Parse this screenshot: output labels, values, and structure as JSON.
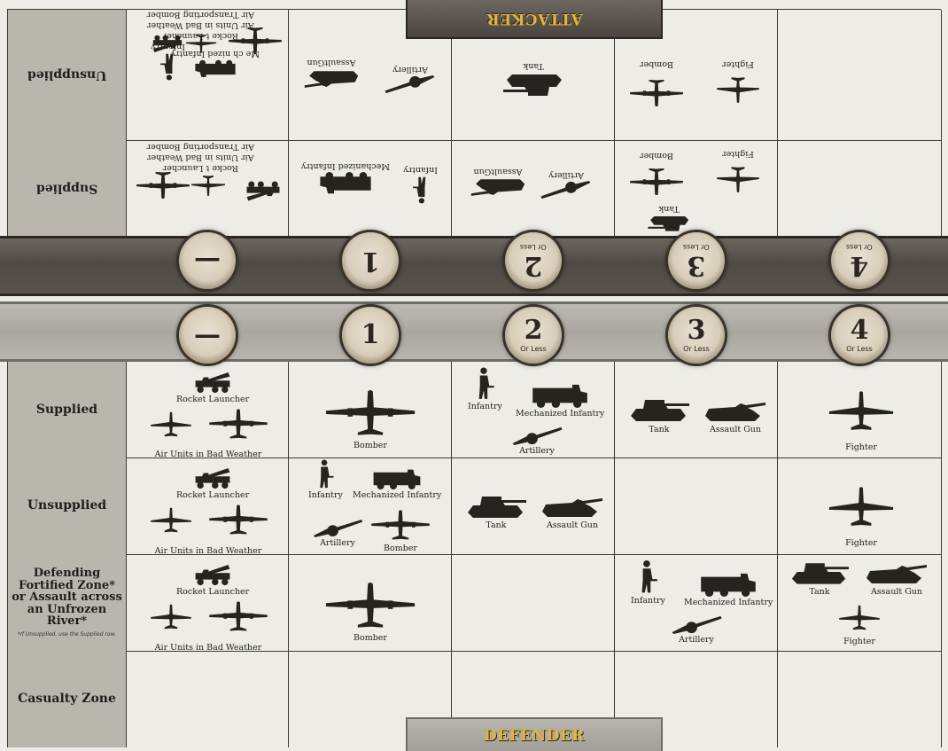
{
  "attacker_label": "ATTACKER",
  "defender_label": "DEFENDER",
  "columns": [
    {
      "num": "—",
      "sub": ""
    },
    {
      "num": "1",
      "sub": ""
    },
    {
      "num": "2",
      "sub": "Or Less"
    },
    {
      "num": "3",
      "sub": "Or Less"
    },
    {
      "num": "4",
      "sub": "Or Less"
    }
  ],
  "attacker_rows": {
    "unsupplied": "Unsupplied",
    "supplied": "Supplied"
  },
  "defender_rows": {
    "supplied": "Supplied",
    "unsupplied": "Unsupplied",
    "fortified": "Defending Fortified Zone* or Assault across an Unfrozen River*",
    "fortified_note": "*If Unsupplied, use the Supplied row.",
    "casualty": "Casualty Zone"
  },
  "units": {
    "rocket": "Rocket Launcher",
    "air_bad": "Air Units in Bad Weather",
    "air_transport": "Air Transporting Bomber",
    "bomber": "Bomber",
    "infantry": "Infantry",
    "mech": "Mechanized Infantry",
    "artillery": "Artillery",
    "tank": "Tank",
    "assault": "Assault Gun",
    "fighter": "Fighter",
    "assault_nospace": "AssaultGun",
    "mech_spaced": "Mechanized Infantry",
    "rocket_spaced": "Rocke t Launcher",
    "air_bad_spaced": "Air Units in Bad Weather",
    "mech_unsup": "Me ch nized Infantry"
  },
  "colors": {
    "tab_text": "#e3b53a",
    "silhouette": "#262321",
    "header_bg": "#b9b7ad"
  }
}
